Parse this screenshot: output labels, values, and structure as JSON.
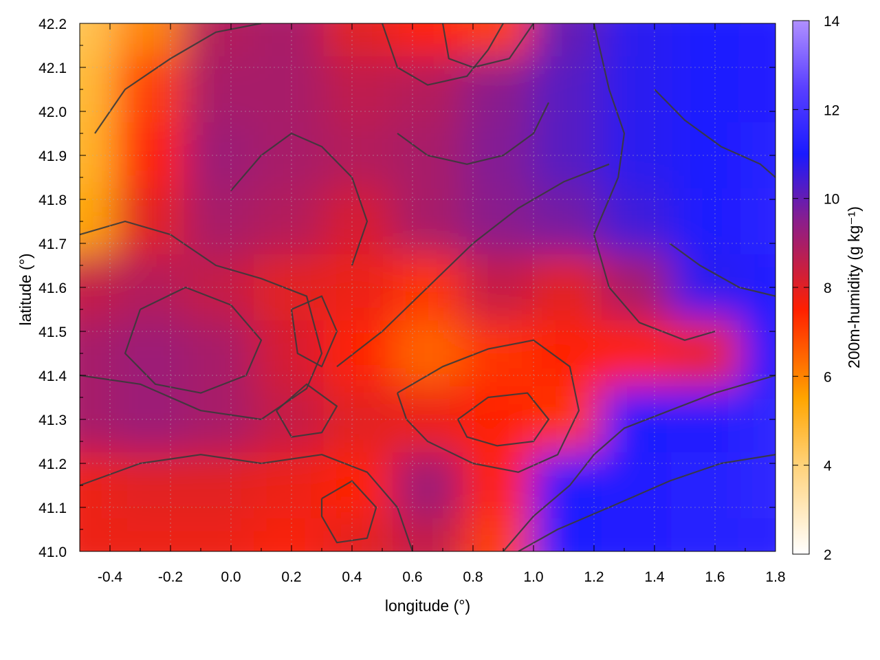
{
  "chart_data": {
    "type": "heatmap",
    "title": "",
    "xlabel": "longitude (°)",
    "ylabel": "latitude (°)",
    "colorbar_label": "200m-humidity (g kg⁻¹)",
    "xlim": [
      -0.5,
      1.8
    ],
    "ylim": [
      41.0,
      42.2
    ],
    "clim": [
      2,
      14
    ],
    "x_ticks": [
      "-0.4",
      "-0.2",
      "0.0",
      "0.2",
      "0.4",
      "0.6",
      "0.8",
      "1.0",
      "1.2",
      "1.4",
      "1.6",
      "1.8"
    ],
    "y_ticks": [
      "41.0",
      "41.1",
      "41.2",
      "41.3",
      "41.4",
      "41.5",
      "41.6",
      "41.7",
      "41.8",
      "41.9",
      "42.0",
      "42.1",
      "42.2"
    ],
    "colorbar_ticks": [
      "2",
      "4",
      "6",
      "8",
      "10",
      "12",
      "14"
    ],
    "colormap": [
      {
        "value": 2,
        "color": "#ffffff"
      },
      {
        "value": 4,
        "color": "#ffd27a"
      },
      {
        "value": 5.5,
        "color": "#ffa500"
      },
      {
        "value": 7.5,
        "color": "#ff2000"
      },
      {
        "value": 9.5,
        "color": "#8a1e8c"
      },
      {
        "value": 11,
        "color": "#1a1aff"
      },
      {
        "value": 12.5,
        "color": "#5a40ff"
      },
      {
        "value": 14,
        "color": "#b090ff"
      }
    ],
    "humidity_field": {
      "lon": [
        -0.5,
        -0.27,
        -0.04,
        0.19,
        0.42,
        0.65,
        0.88,
        1.11,
        1.34,
        1.57,
        1.8
      ],
      "lat": [
        42.2,
        42.05,
        41.9,
        41.75,
        41.6,
        41.45,
        41.3,
        41.15,
        41.0
      ],
      "values": [
        [
          4.5,
          6.0,
          8.8,
          9.0,
          8.0,
          7.5,
          7.0,
          10.0,
          10.8,
          11.0,
          11.2
        ],
        [
          4.8,
          7.0,
          9.0,
          9.0,
          8.6,
          8.8,
          9.5,
          10.2,
          10.8,
          11.1,
          11.2
        ],
        [
          5.0,
          7.5,
          9.2,
          9.0,
          8.8,
          9.0,
          9.6,
          10.2,
          10.8,
          11.0,
          11.3
        ],
        [
          5.5,
          8.0,
          9.0,
          8.8,
          8.2,
          9.0,
          9.5,
          9.8,
          10.5,
          11.0,
          11.4
        ],
        [
          8.5,
          8.8,
          8.5,
          8.0,
          7.8,
          7.2,
          8.5,
          8.0,
          9.0,
          10.8,
          11.2
        ],
        [
          9.0,
          9.2,
          9.0,
          8.2,
          7.5,
          6.5,
          7.2,
          7.5,
          7.5,
          7.8,
          11.0
        ],
        [
          9.0,
          9.2,
          9.0,
          8.5,
          8.0,
          7.8,
          7.5,
          7.2,
          11.0,
          11.2,
          11.5
        ],
        [
          7.8,
          8.0,
          8.0,
          7.8,
          7.5,
          9.2,
          7.5,
          11.0,
          11.2,
          11.3,
          11.5
        ],
        [
          7.8,
          7.8,
          7.8,
          7.6,
          8.0,
          8.5,
          7.0,
          11.0,
          11.2,
          11.3,
          11.4
        ]
      ]
    },
    "contours": [
      [
        [
          -0.5,
          41.72
        ],
        [
          -0.35,
          41.75
        ],
        [
          -0.2,
          41.72
        ],
        [
          -0.05,
          41.65
        ],
        [
          0.1,
          41.62
        ],
        [
          0.25,
          41.58
        ],
        [
          0.3,
          41.45
        ],
        [
          0.25,
          41.37
        ],
        [
          0.1,
          41.3
        ],
        [
          -0.1,
          41.32
        ],
        [
          -0.3,
          41.38
        ],
        [
          -0.5,
          41.4
        ]
      ],
      [
        [
          -0.3,
          41.55
        ],
        [
          -0.15,
          41.6
        ],
        [
          0.0,
          41.56
        ],
        [
          0.1,
          41.48
        ],
        [
          0.05,
          41.4
        ],
        [
          -0.1,
          41.36
        ],
        [
          -0.25,
          41.38
        ],
        [
          -0.35,
          41.45
        ],
        [
          -0.3,
          41.55
        ]
      ],
      [
        [
          -0.5,
          41.15
        ],
        [
          -0.3,
          41.2
        ],
        [
          -0.1,
          41.22
        ],
        [
          0.1,
          41.2
        ],
        [
          0.3,
          41.22
        ],
        [
          0.45,
          41.18
        ],
        [
          0.55,
          41.1
        ],
        [
          0.6,
          41.0
        ]
      ],
      [
        [
          0.15,
          41.32
        ],
        [
          0.25,
          41.38
        ],
        [
          0.35,
          41.33
        ],
        [
          0.3,
          41.27
        ],
        [
          0.2,
          41.26
        ],
        [
          0.15,
          41.32
        ]
      ],
      [
        [
          0.55,
          41.36
        ],
        [
          0.7,
          41.42
        ],
        [
          0.85,
          41.46
        ],
        [
          1.0,
          41.48
        ],
        [
          1.12,
          41.42
        ],
        [
          1.15,
          41.32
        ],
        [
          1.08,
          41.22
        ],
        [
          0.95,
          41.18
        ],
        [
          0.8,
          41.2
        ],
        [
          0.65,
          41.25
        ],
        [
          0.58,
          41.3
        ],
        [
          0.55,
          41.36
        ]
      ],
      [
        [
          0.75,
          41.3
        ],
        [
          0.85,
          41.35
        ],
        [
          0.98,
          41.36
        ],
        [
          1.05,
          41.3
        ],
        [
          1.0,
          41.25
        ],
        [
          0.88,
          41.24
        ],
        [
          0.78,
          41.26
        ],
        [
          0.75,
          41.3
        ]
      ],
      [
        [
          0.9,
          41.0
        ],
        [
          1.0,
          41.08
        ],
        [
          1.12,
          41.15
        ],
        [
          1.2,
          41.22
        ],
        [
          1.3,
          41.28
        ],
        [
          1.45,
          41.32
        ],
        [
          1.6,
          41.36
        ],
        [
          1.8,
          41.4
        ]
      ],
      [
        [
          0.95,
          41.0
        ],
        [
          1.08,
          41.05
        ],
        [
          1.25,
          41.1
        ],
        [
          1.45,
          41.16
        ],
        [
          1.62,
          41.2
        ],
        [
          1.8,
          41.22
        ]
      ],
      [
        [
          0.35,
          41.42
        ],
        [
          0.5,
          41.5
        ],
        [
          0.65,
          41.6
        ],
        [
          0.8,
          41.7
        ],
        [
          0.95,
          41.78
        ],
        [
          1.1,
          41.84
        ],
        [
          1.25,
          41.88
        ]
      ],
      [
        [
          0.0,
          41.82
        ],
        [
          0.1,
          41.9
        ],
        [
          0.2,
          41.95
        ],
        [
          0.3,
          41.92
        ],
        [
          0.4,
          41.85
        ],
        [
          0.45,
          41.75
        ],
        [
          0.4,
          41.65
        ]
      ],
      [
        [
          -0.45,
          41.95
        ],
        [
          -0.35,
          42.05
        ],
        [
          -0.2,
          42.12
        ],
        [
          -0.05,
          42.18
        ],
        [
          0.1,
          42.2
        ]
      ],
      [
        [
          0.5,
          42.2
        ],
        [
          0.55,
          42.1
        ],
        [
          0.65,
          42.06
        ],
        [
          0.78,
          42.08
        ],
        [
          0.85,
          42.14
        ],
        [
          0.9,
          42.2
        ]
      ],
      [
        [
          0.7,
          42.2
        ],
        [
          0.72,
          42.12
        ],
        [
          0.8,
          42.1
        ],
        [
          0.92,
          42.12
        ],
        [
          0.98,
          42.18
        ],
        [
          1.0,
          42.2
        ]
      ],
      [
        [
          1.2,
          42.2
        ],
        [
          1.25,
          42.05
        ],
        [
          1.3,
          41.95
        ],
        [
          1.28,
          41.85
        ],
        [
          1.2,
          41.72
        ],
        [
          1.25,
          41.6
        ],
        [
          1.35,
          41.52
        ],
        [
          1.5,
          41.48
        ],
        [
          1.6,
          41.5
        ]
      ],
      [
        [
          1.4,
          42.05
        ],
        [
          1.5,
          41.98
        ],
        [
          1.62,
          41.92
        ],
        [
          1.75,
          41.88
        ],
        [
          1.8,
          41.85
        ]
      ],
      [
        [
          1.45,
          41.7
        ],
        [
          1.55,
          41.65
        ],
        [
          1.68,
          41.6
        ],
        [
          1.8,
          41.58
        ]
      ],
      [
        [
          0.55,
          41.95
        ],
        [
          0.65,
          41.9
        ],
        [
          0.78,
          41.88
        ],
        [
          0.9,
          41.9
        ],
        [
          1.0,
          41.95
        ],
        [
          1.05,
          42.02
        ]
      ],
      [
        [
          0.2,
          41.55
        ],
        [
          0.3,
          41.58
        ],
        [
          0.35,
          41.5
        ],
        [
          0.3,
          41.42
        ],
        [
          0.22,
          41.45
        ],
        [
          0.2,
          41.55
        ]
      ],
      [
        [
          0.3,
          41.12
        ],
        [
          0.4,
          41.16
        ],
        [
          0.48,
          41.1
        ],
        [
          0.45,
          41.03
        ],
        [
          0.35,
          41.02
        ],
        [
          0.3,
          41.08
        ],
        [
          0.3,
          41.12
        ]
      ]
    ]
  }
}
